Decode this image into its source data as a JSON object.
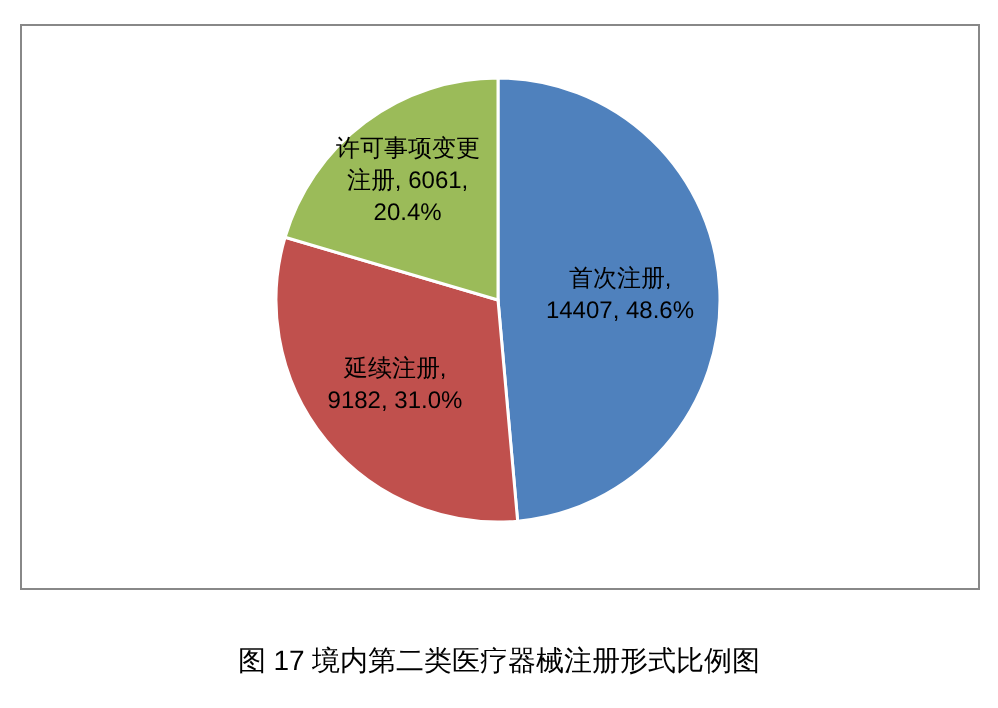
{
  "chart_data": {
    "type": "pie",
    "title": "图 17 境内第二类医疗器械注册形式比例图",
    "categories": [
      "首次注册",
      "延续注册",
      "许可事项变更注册"
    ],
    "values": [
      14407,
      9182,
      6061
    ],
    "colors": [
      "#4f81bd",
      "#c0504d",
      "#9bbb59"
    ],
    "value_labels": [
      ", 14407, 48.6%",
      ", 9182, 31.0%",
      ", 6061, 20.4%"
    ]
  }
}
